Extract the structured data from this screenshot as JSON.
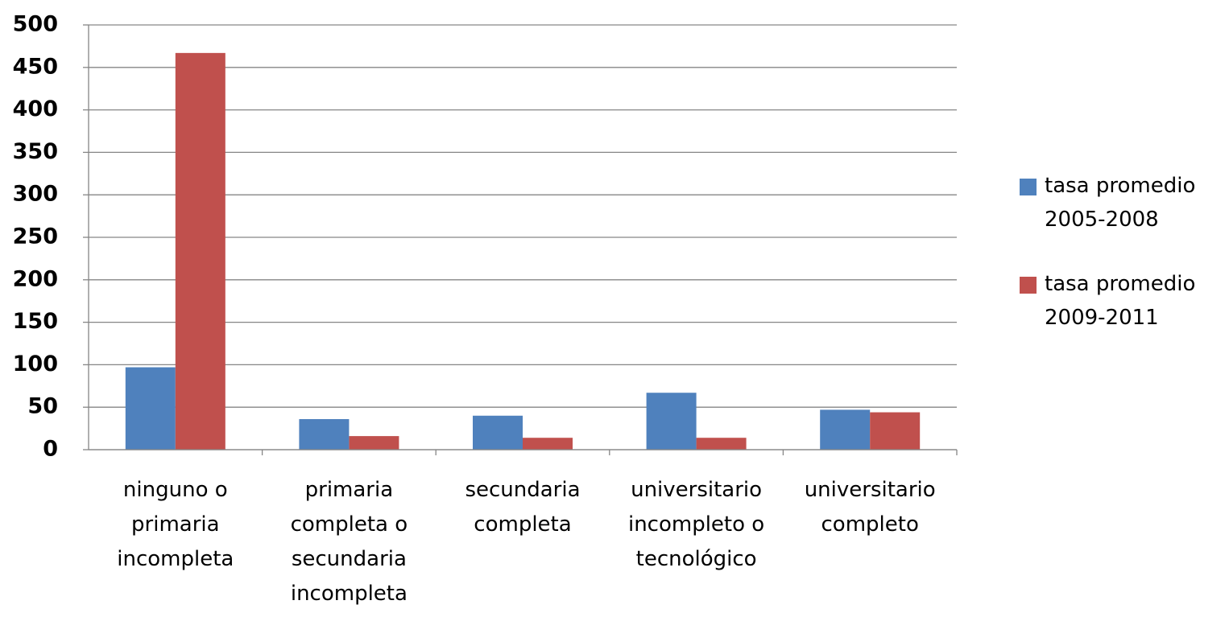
{
  "chart_data": {
    "type": "bar",
    "categories": [
      "ninguno o primaria incompleta",
      "primaria completa o secundaria incompleta",
      "secundaria completa",
      "universitario incompleto o tecnológico",
      "universitario completo"
    ],
    "series": [
      {
        "name": "tasa promedio 2005-2008",
        "color": "#4f81bd",
        "values": [
          97,
          36,
          40,
          67,
          47
        ]
      },
      {
        "name": "tasa promedio 2009-2011",
        "color": "#c0504d",
        "values": [
          467,
          16,
          14,
          14,
          44
        ]
      }
    ],
    "ylim": [
      0,
      500
    ],
    "yticks": [
      0,
      50,
      100,
      150,
      200,
      250,
      300,
      350,
      400,
      450,
      500
    ],
    "grid": true,
    "legend": "right"
  }
}
